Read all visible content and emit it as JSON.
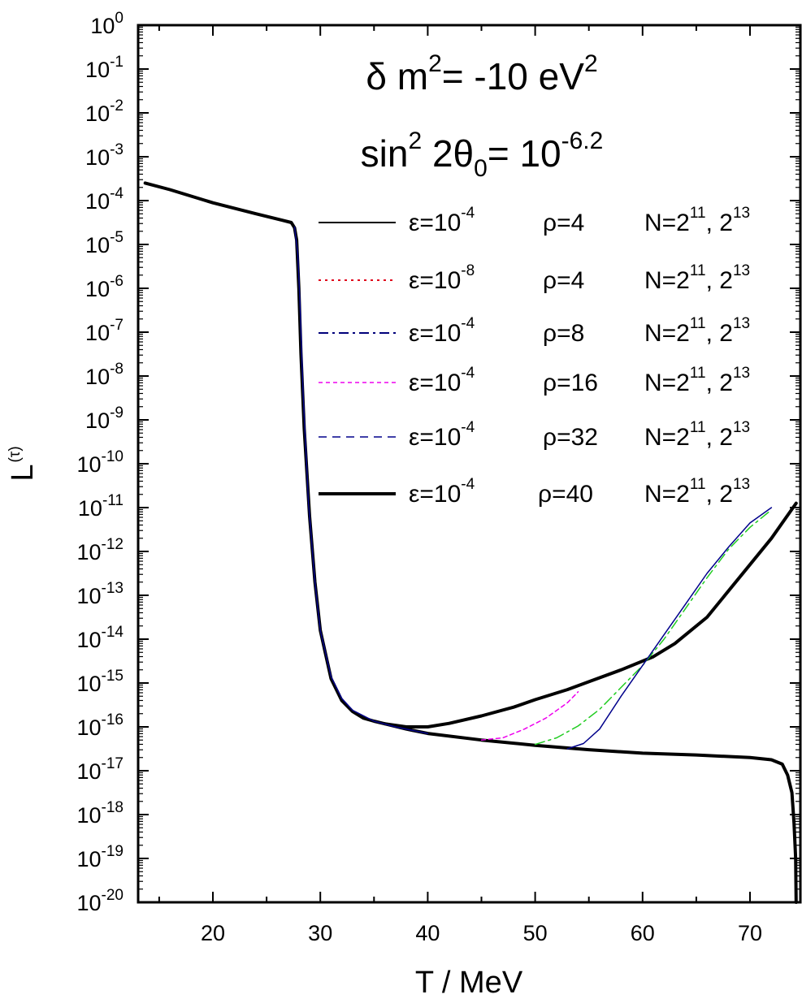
{
  "chart_data": {
    "type": "line",
    "xlabel": "T / MeV",
    "ylabel": {
      "base": "L",
      "sup": "(τ)"
    },
    "xlim": [
      13,
      74.5
    ],
    "ylim_exponent": [
      -20,
      0
    ],
    "yscale": "log",
    "x_ticks": [
      "20",
      "30",
      "40",
      "50",
      "60",
      "70"
    ],
    "y_tick_exponents": [
      "0",
      "-1",
      "-2",
      "-3",
      "-4",
      "-5",
      "-6",
      "-7",
      "-8",
      "-9",
      "-10",
      "-11",
      "-12",
      "-13",
      "-14",
      "-15",
      "-16",
      "-17",
      "-18",
      "-19",
      "-20"
    ],
    "y_tick_base": "10",
    "annotations": [
      {
        "parts": [
          {
            "t": "δ m"
          },
          {
            "t": "2",
            "sup": true
          },
          {
            "t": "= -10 eV"
          },
          {
            "t": "2",
            "sup": true
          }
        ]
      },
      {
        "parts": [
          {
            "t": "sin"
          },
          {
            "t": "2",
            "sup": true
          },
          {
            "t": " 2θ"
          },
          {
            "t": "0",
            "sub": true
          },
          {
            "t": "= 10"
          },
          {
            "t": "-6.2",
            "sup": true
          }
        ]
      }
    ],
    "legend_position": "right",
    "legend": [
      {
        "eps_base": "ε=10",
        "eps_exp": "-4",
        "rho": "ρ=4",
        "n_base": "N=2",
        "n_exp1": "11",
        "n_mid": ", 2",
        "n_exp2": "13",
        "style": "solid",
        "color": "#000000",
        "width": 2
      },
      {
        "eps_base": "ε=10",
        "eps_exp": "-8",
        "rho": "ρ=4",
        "n_base": "N=2",
        "n_exp1": "11",
        "n_mid": ", 2",
        "n_exp2": "13",
        "style": "dot",
        "color": "#e0001a",
        "width": 2
      },
      {
        "eps_base": "ε=10",
        "eps_exp": "-4",
        "rho": "ρ=8",
        "n_base": "N=2",
        "n_exp1": "11",
        "n_mid": ", 2",
        "n_exp2": "13",
        "style": "dashdot",
        "color": "#00007a",
        "width": 2
      },
      {
        "eps_base": "ε=10",
        "eps_exp": "-4",
        "rho": "ρ=16",
        "n_base": "N=2",
        "n_exp1": "11",
        "n_mid": ", 2",
        "n_exp2": "13",
        "style": "shortdash",
        "color": "#ee00ee",
        "width": 1.5
      },
      {
        "eps_base": "ε=10",
        "eps_exp": "-4",
        "rho": "ρ=32",
        "n_base": "N=2",
        "n_exp1": "11",
        "n_mid": ", 2",
        "n_exp2": "13",
        "style": "dash",
        "color": "#00008b",
        "width": 1.5
      },
      {
        "eps_base": "ε=10",
        "eps_exp": "-4",
        "rho": "ρ=40",
        "n_base": "N=2",
        "n_exp1": "11",
        "n_mid": ", 2",
        "n_exp2": "13",
        "style": "solid",
        "color": "#000000",
        "width": 4
      }
    ],
    "series": [
      {
        "style": "solid",
        "color": "#000000",
        "width": 4,
        "points": [
          [
            13.7,
            -3.6
          ],
          [
            16,
            -3.75
          ],
          [
            20,
            -4.05
          ],
          [
            24,
            -4.3
          ],
          [
            26.5,
            -4.45
          ],
          [
            27.3,
            -4.5
          ],
          [
            27.6,
            -4.62
          ],
          [
            27.8,
            -4.9
          ],
          [
            28,
            -6
          ],
          [
            28.2,
            -7.5
          ],
          [
            28.5,
            -9.2
          ],
          [
            29,
            -11.2
          ],
          [
            29.5,
            -12.7
          ],
          [
            30,
            -13.8
          ],
          [
            31,
            -14.9
          ],
          [
            32,
            -15.4
          ],
          [
            33,
            -15.65
          ],
          [
            34,
            -15.8
          ],
          [
            35,
            -15.87
          ],
          [
            36,
            -15.93
          ],
          [
            38,
            -16.0
          ],
          [
            40,
            -16.0
          ],
          [
            42,
            -15.92
          ],
          [
            45,
            -15.75
          ],
          [
            48,
            -15.55
          ],
          [
            50,
            -15.38
          ],
          [
            53,
            -15.15
          ],
          [
            55,
            -14.97
          ],
          [
            58,
            -14.7
          ],
          [
            61,
            -14.4
          ],
          [
            63,
            -14.1
          ],
          [
            66,
            -13.5
          ],
          [
            70,
            -12.3
          ],
          [
            72,
            -11.7
          ],
          [
            74.3,
            -10.9
          ]
        ]
      },
      {
        "style": "solid",
        "color": "#000000",
        "width": 4,
        "points": [
          [
            36,
            -15.93
          ],
          [
            38,
            -16.05
          ],
          [
            40,
            -16.15
          ],
          [
            45,
            -16.3
          ],
          [
            50,
            -16.42
          ],
          [
            55,
            -16.52
          ],
          [
            60,
            -16.6
          ],
          [
            65,
            -16.64
          ],
          [
            70,
            -16.7
          ],
          [
            72,
            -16.75
          ],
          [
            73,
            -16.85
          ],
          [
            73.5,
            -17.1
          ],
          [
            73.9,
            -17.5
          ],
          [
            74.1,
            -18.2
          ],
          [
            74.25,
            -19
          ],
          [
            74.3,
            -20
          ]
        ]
      },
      {
        "style": "solid",
        "color": "#00008b",
        "width": 1.5,
        "points": [
          [
            27.6,
            -4.6
          ],
          [
            27.9,
            -5.2
          ],
          [
            28.1,
            -6.3
          ],
          [
            28.4,
            -8.4
          ],
          [
            28.9,
            -10.9
          ],
          [
            29.5,
            -12.7
          ],
          [
            30,
            -13.8
          ],
          [
            31,
            -14.85
          ],
          [
            32,
            -15.35
          ],
          [
            33,
            -15.62
          ],
          [
            35,
            -15.87
          ],
          [
            37,
            -16.0
          ],
          [
            40,
            -16.15
          ]
        ]
      },
      {
        "style": "shortdash",
        "color": "#ee00ee",
        "width": 1.5,
        "points": [
          [
            45,
            -16.3
          ],
          [
            47,
            -16.25
          ],
          [
            49,
            -16.05
          ],
          [
            51,
            -15.8
          ],
          [
            53,
            -15.45
          ],
          [
            54,
            -15.2
          ]
        ]
      },
      {
        "style": "dashdot",
        "color": "#22cc22",
        "width": 1.5,
        "points": [
          [
            50,
            -16.4
          ],
          [
            52,
            -16.25
          ],
          [
            54,
            -15.98
          ],
          [
            56,
            -15.6
          ],
          [
            58,
            -15.1
          ],
          [
            60,
            -14.6
          ],
          [
            62,
            -14.0
          ],
          [
            64,
            -13.3
          ],
          [
            66,
            -12.6
          ],
          [
            68,
            -11.95
          ],
          [
            70,
            -11.45
          ],
          [
            72,
            -11.05
          ]
        ]
      },
      {
        "style": "solid",
        "color": "#00008b",
        "width": 1.5,
        "points": [
          [
            53,
            -16.5
          ],
          [
            54.5,
            -16.38
          ],
          [
            56,
            -16.05
          ],
          [
            58,
            -15.3
          ],
          [
            60,
            -14.6
          ],
          [
            62,
            -13.9
          ],
          [
            64,
            -13.2
          ],
          [
            66,
            -12.5
          ],
          [
            68,
            -11.9
          ],
          [
            70,
            -11.35
          ],
          [
            72,
            -11.0
          ]
        ]
      }
    ]
  }
}
